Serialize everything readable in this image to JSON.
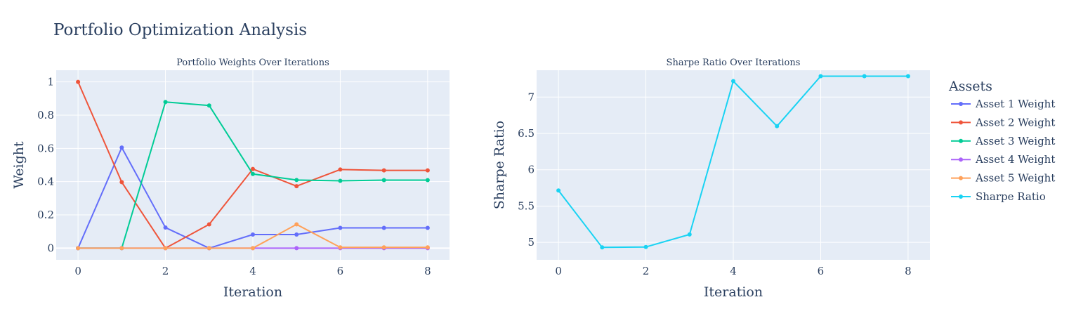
{
  "title": "Portfolio Optimization Analysis",
  "legend": {
    "title": "Assets",
    "entries": [
      {
        "label": "Asset 1 Weight",
        "color": "#636efa"
      },
      {
        "label": "Asset 2 Weight",
        "color": "#ef553b"
      },
      {
        "label": "Asset 3 Weight",
        "color": "#00cc96"
      },
      {
        "label": "Asset 4 Weight",
        "color": "#ab63fa"
      },
      {
        "label": "Asset 5 Weight",
        "color": "#ffa15a"
      },
      {
        "label": "Sharpe Ratio",
        "color": "#19d3f3"
      }
    ]
  },
  "chart_data": [
    {
      "type": "line",
      "title": "Portfolio Weights Over Iterations",
      "xlabel": "Iteration",
      "ylabel": "Weight",
      "x": [
        0,
        1,
        2,
        3,
        4,
        5,
        6,
        7,
        8
      ],
      "xlim": [
        -0.5,
        8.5
      ],
      "ylim": [
        -0.07,
        1.07
      ],
      "xticks": [
        0,
        2,
        4,
        6,
        8
      ],
      "yticks": [
        0,
        0.2,
        0.4,
        0.6,
        0.8,
        1
      ],
      "ytick_labels": [
        "0",
        "0.2",
        "0.4",
        "0.6",
        "0.8",
        "1"
      ],
      "grid": true,
      "series": [
        {
          "name": "Asset 1 Weight",
          "color": "#636efa",
          "values": [
            0,
            0.605,
            0.124,
            0.0,
            0.082,
            0.082,
            0.122,
            0.122,
            0.122
          ]
        },
        {
          "name": "Asset 2 Weight",
          "color": "#ef553b",
          "values": [
            1.0,
            0.397,
            0.0,
            0.143,
            0.476,
            0.373,
            0.473,
            0.468,
            0.468
          ]
        },
        {
          "name": "Asset 3 Weight",
          "color": "#00cc96",
          "values": [
            0,
            0,
            0.879,
            0.858,
            0.446,
            0.41,
            0.405,
            0.409,
            0.409
          ]
        },
        {
          "name": "Asset 4 Weight",
          "color": "#ab63fa",
          "values": [
            0,
            0,
            0,
            0,
            0,
            0,
            0,
            0,
            0
          ]
        },
        {
          "name": "Asset 5 Weight",
          "color": "#ffa15a",
          "values": [
            0,
            0,
            0,
            0,
            0,
            0.143,
            0.005,
            0.005,
            0.005
          ]
        }
      ]
    },
    {
      "type": "line",
      "title": "Sharpe Ratio Over Iterations",
      "xlabel": "Iteration",
      "ylabel": "Sharpe Ratio",
      "x": [
        0,
        1,
        2,
        3,
        4,
        5,
        6,
        7,
        8
      ],
      "xlim": [
        -0.5,
        8.5
      ],
      "ylim": [
        4.76,
        7.37
      ],
      "xticks": [
        0,
        2,
        4,
        6,
        8
      ],
      "yticks": [
        5,
        5.5,
        6,
        6.5,
        7
      ],
      "ytick_labels": [
        "5",
        "5.5",
        "6",
        "6.5",
        "7"
      ],
      "grid": true,
      "series": [
        {
          "name": "Sharpe Ratio",
          "color": "#19d3f3",
          "values": [
            5.715,
            4.931,
            4.937,
            5.109,
            7.22,
            6.6,
            7.288,
            7.288,
            7.288
          ]
        }
      ]
    }
  ]
}
